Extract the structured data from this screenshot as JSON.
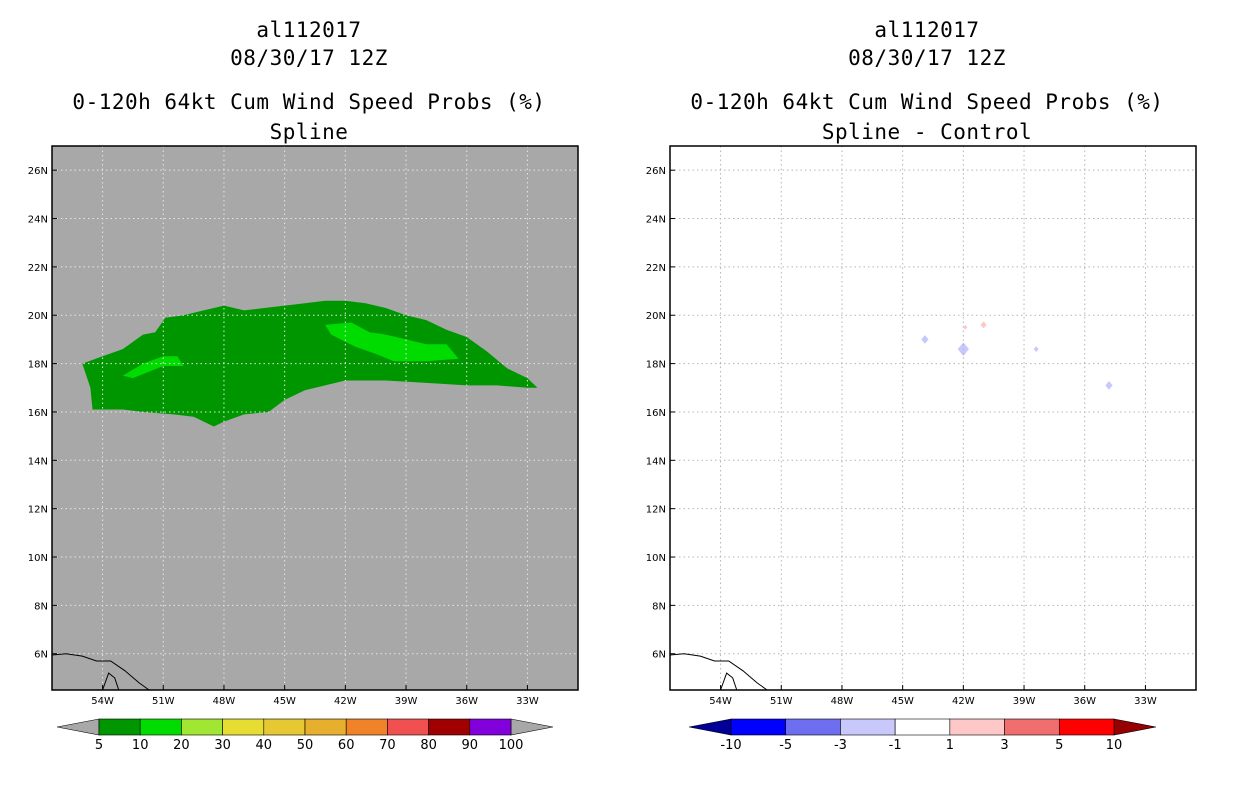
{
  "chart_data": [
    {
      "type": "heatmap",
      "panel": "left",
      "title_lines": [
        "al112017",
        "08/30/17 12Z",
        "0-120h 64kt Cum Wind Speed Probs (%)",
        "Spline"
      ],
      "x_ticks": [
        "54W",
        "51W",
        "48W",
        "45W",
        "42W",
        "39W",
        "36W",
        "33W"
      ],
      "y_ticks": [
        "26N",
        "24N",
        "22N",
        "20N",
        "18N",
        "16N",
        "14N",
        "12N",
        "10N",
        "8N",
        "6N"
      ],
      "xlim": [
        -56.5,
        -30.5
      ],
      "ylim": [
        4.5,
        27.0
      ],
      "background_color": "#a8a8a8",
      "field": [
        {
          "level": "5-10",
          "color": "#009600",
          "lonlat": [
            [
              -55.0,
              18.0
            ],
            [
              -54.0,
              18.3
            ],
            [
              -53.0,
              18.6
            ],
            [
              -52.0,
              19.2
            ],
            [
              -51.4,
              19.3
            ],
            [
              -50.9,
              19.9
            ],
            [
              -50.0,
              20.0
            ],
            [
              -49.0,
              20.2
            ],
            [
              -48.0,
              20.4
            ],
            [
              -47.0,
              20.2
            ],
            [
              -46.0,
              20.3
            ],
            [
              -45.0,
              20.4
            ],
            [
              -44.0,
              20.5
            ],
            [
              -43.0,
              20.6
            ],
            [
              -42.0,
              20.6
            ],
            [
              -41.0,
              20.5
            ],
            [
              -40.0,
              20.3
            ],
            [
              -39.0,
              20.0
            ],
            [
              -38.0,
              19.8
            ],
            [
              -37.0,
              19.4
            ],
            [
              -36.0,
              19.1
            ],
            [
              -35.0,
              18.5
            ],
            [
              -34.0,
              17.8
            ],
            [
              -33.0,
              17.4
            ],
            [
              -32.5,
              17.0
            ],
            [
              -33.0,
              17.0
            ],
            [
              -34.5,
              17.1
            ],
            [
              -36.0,
              17.1
            ],
            [
              -38.0,
              17.2
            ],
            [
              -40.0,
              17.3
            ],
            [
              -42.0,
              17.3
            ],
            [
              -44.0,
              16.9
            ],
            [
              -45.0,
              16.5
            ],
            [
              -45.8,
              16.0
            ],
            [
              -47.0,
              15.9
            ],
            [
              -48.0,
              15.6
            ],
            [
              -48.5,
              15.4
            ],
            [
              -49.5,
              15.8
            ],
            [
              -50.5,
              15.9
            ],
            [
              -52.0,
              16.0
            ],
            [
              -53.0,
              16.1
            ],
            [
              -54.5,
              16.1
            ],
            [
              -54.6,
              17.0
            ]
          ]
        },
        {
          "level": "10-20",
          "color": "#00dc00",
          "lonlat": [
            [
              -53.0,
              17.5
            ],
            [
              -52.0,
              18.0
            ],
            [
              -51.0,
              18.3
            ],
            [
              -50.3,
              18.3
            ],
            [
              -50.0,
              17.9
            ],
            [
              -51.0,
              17.9
            ],
            [
              -52.5,
              17.4
            ]
          ]
        },
        {
          "level": "10-20",
          "color": "#00dc00",
          "lonlat": [
            [
              -43.0,
              19.6
            ],
            [
              -41.7,
              19.7
            ],
            [
              -40.8,
              19.3
            ],
            [
              -40.0,
              19.2
            ],
            [
              -39.0,
              19.0
            ],
            [
              -38.0,
              18.8
            ],
            [
              -37.0,
              18.8
            ],
            [
              -36.4,
              18.2
            ],
            [
              -38.0,
              18.1
            ],
            [
              -39.6,
              18.1
            ],
            [
              -40.5,
              18.4
            ],
            [
              -41.5,
              18.7
            ],
            [
              -42.0,
              18.9
            ],
            [
              -42.7,
              19.2
            ]
          ]
        }
      ],
      "colorbar": {
        "labels": [
          "5",
          "10",
          "20",
          "30",
          "40",
          "50",
          "60",
          "70",
          "80",
          "90",
          "100"
        ],
        "colors": [
          "#009600",
          "#00dc00",
          "#a0e632",
          "#e6dc32",
          "#e6c832",
          "#e6af2d",
          "#f08228",
          "#f05050",
          "#a00000",
          "#8200dc"
        ],
        "under_color": "#a8a8a8",
        "over_color": "#a8a8a8"
      }
    },
    {
      "type": "heatmap",
      "panel": "right",
      "title_lines": [
        "al112017",
        "08/30/17 12Z",
        "0-120h 64kt Cum Wind Speed Probs (%)",
        "Spline - Control"
      ],
      "x_ticks": [
        "54W",
        "51W",
        "48W",
        "45W",
        "42W",
        "39W",
        "36W",
        "33W"
      ],
      "y_ticks": [
        "26N",
        "24N",
        "22N",
        "20N",
        "18N",
        "16N",
        "14N",
        "12N",
        "10N",
        "8N",
        "6N"
      ],
      "xlim": [
        -56.5,
        -30.5
      ],
      "ylim": [
        4.5,
        27.0
      ],
      "background_color": "#ffffff",
      "dots": [
        {
          "lon": -42.0,
          "lat": 18.6,
          "r": 0.28,
          "color": "#c8c8ff"
        },
        {
          "lon": -43.9,
          "lat": 19.0,
          "r": 0.18,
          "color": "#c8c8ff"
        },
        {
          "lon": -34.8,
          "lat": 17.1,
          "r": 0.18,
          "color": "#c8c8ff"
        },
        {
          "lon": -38.4,
          "lat": 18.6,
          "r": 0.12,
          "color": "#c8c8ff"
        },
        {
          "lon": -41.9,
          "lat": 19.5,
          "r": 0.1,
          "color": "#ffc8c8"
        },
        {
          "lon": -41.0,
          "lat": 19.6,
          "r": 0.15,
          "color": "#ffc8c8"
        }
      ],
      "colorbar": {
        "labels": [
          "-10",
          "-5",
          "-3",
          "-1",
          "1",
          "3",
          "5",
          "10"
        ],
        "colors": [
          "#0000ff",
          "#6e6ef0",
          "#c8c8fa",
          "#ffffff",
          "#ffc8c8",
          "#f06e6e",
          "#ff0000"
        ],
        "under_color": "#000096",
        "over_color": "#960000"
      }
    }
  ]
}
